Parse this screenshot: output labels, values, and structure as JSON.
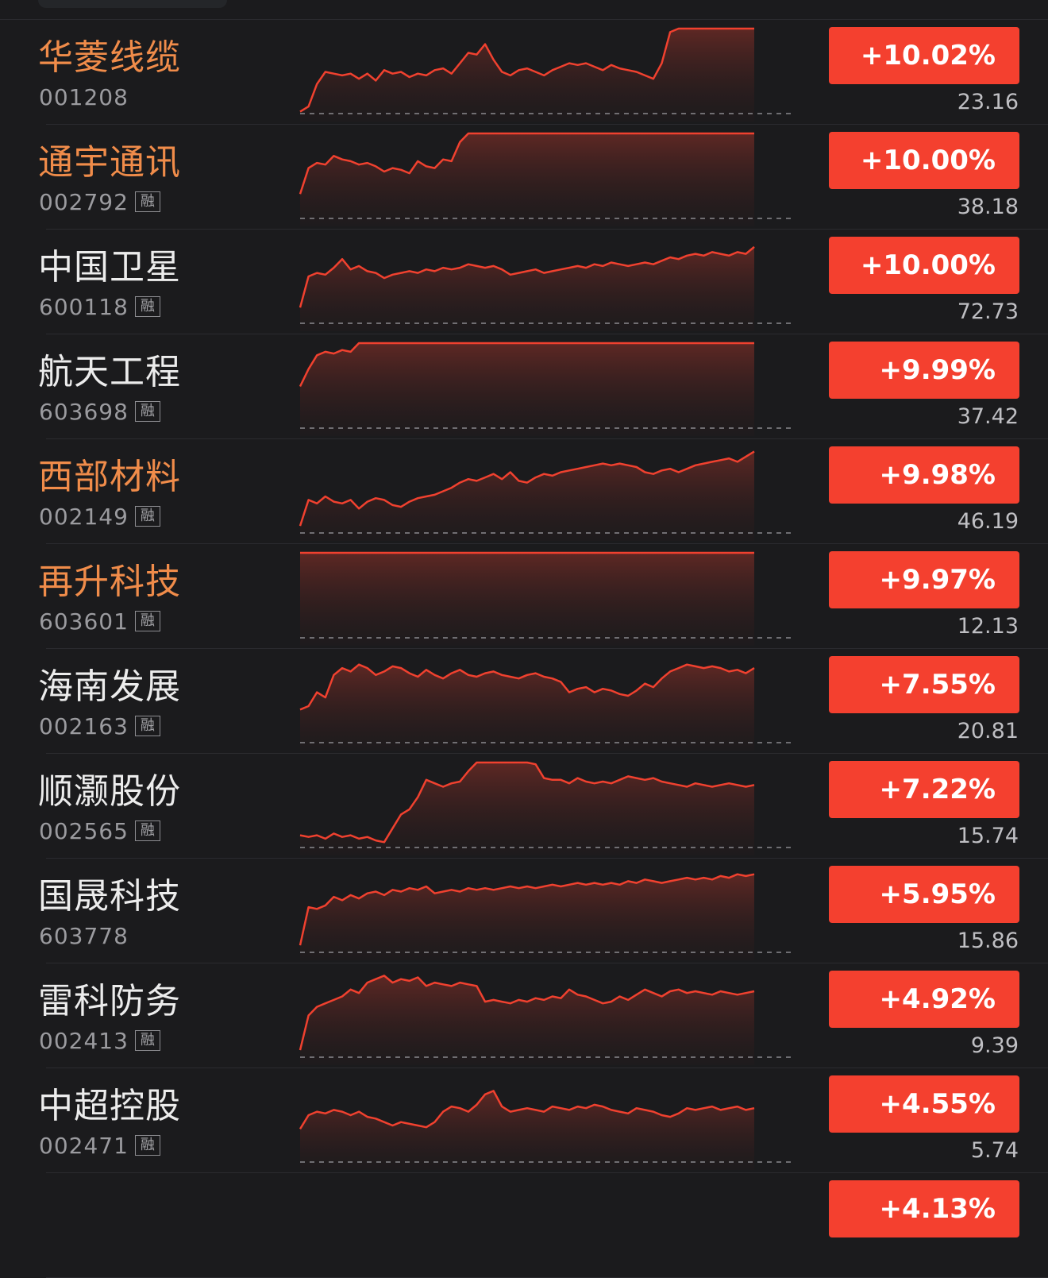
{
  "stocks": [
    {
      "name": "华菱线缆",
      "code": "001208",
      "margin_badge": "",
      "change": "+10.02%",
      "price": "23.16",
      "highlight": true,
      "spark": [
        2,
        5,
        18,
        25,
        24,
        23,
        24,
        21,
        24,
        20,
        26,
        24,
        25,
        22,
        24,
        23,
        26,
        27,
        24,
        30,
        36,
        35,
        41,
        32,
        25,
        23,
        26,
        27,
        25,
        23,
        26,
        28,
        30,
        29,
        30,
        28,
        26,
        29,
        27,
        26,
        25,
        23,
        21,
        30,
        48,
        50,
        50,
        50,
        50,
        50,
        50,
        50,
        50,
        50,
        50
      ]
    },
    {
      "name": "通宇通讯",
      "code": "002792",
      "margin_badge": "融",
      "change": "+10.00%",
      "price": "38.18",
      "highlight": true,
      "spark": [
        15,
        30,
        33,
        32,
        37,
        35,
        34,
        32,
        33,
        31,
        28,
        30,
        29,
        27,
        34,
        31,
        30,
        35,
        34,
        45,
        50,
        50,
        50,
        50,
        50,
        50,
        50,
        50,
        50,
        50,
        50,
        50,
        50,
        50,
        50,
        50,
        50,
        50,
        50,
        50,
        50,
        50,
        50,
        50,
        50,
        50,
        50,
        50,
        50,
        50,
        50,
        50,
        50,
        50,
        50
      ]
    },
    {
      "name": "中国卫星",
      "code": "600118",
      "margin_badge": "融",
      "change": "+10.00%",
      "price": "72.73",
      "highlight": false,
      "spark": [
        10,
        28,
        30,
        29,
        33,
        38,
        32,
        34,
        31,
        30,
        27,
        29,
        30,
        31,
        30,
        32,
        31,
        33,
        32,
        33,
        35,
        34,
        33,
        34,
        32,
        29,
        30,
        31,
        32,
        30,
        31,
        32,
        33,
        34,
        33,
        35,
        34,
        36,
        35,
        34,
        35,
        36,
        35,
        37,
        39,
        38,
        40,
        41,
        40,
        42,
        41,
        40,
        42,
        41,
        45
      ]
    },
    {
      "name": "航天工程",
      "code": "603698",
      "margin_badge": "融",
      "change": "+9.99%",
      "price": "37.42",
      "highlight": false,
      "spark": [
        25,
        35,
        43,
        45,
        44,
        46,
        45,
        50,
        50,
        50,
        50,
        50,
        50,
        50,
        50,
        50,
        50,
        50,
        50,
        50,
        50,
        50,
        50,
        50,
        50,
        50,
        50,
        50,
        50,
        50,
        50,
        50,
        50,
        50,
        50,
        50,
        50,
        50,
        50,
        50,
        50,
        50,
        50,
        50,
        50,
        50,
        50,
        50,
        50,
        50,
        50,
        50,
        50,
        50,
        50
      ]
    },
    {
      "name": "西部材料",
      "code": "002149",
      "margin_badge": "融",
      "change": "+9.98%",
      "price": "46.19",
      "highlight": true,
      "spark": [
        5,
        20,
        18,
        22,
        19,
        18,
        20,
        15,
        19,
        21,
        20,
        17,
        16,
        19,
        21,
        22,
        23,
        25,
        27,
        30,
        32,
        31,
        33,
        35,
        32,
        36,
        31,
        30,
        33,
        35,
        34,
        36,
        37,
        38,
        39,
        40,
        41,
        40,
        41,
        40,
        39,
        36,
        35,
        37,
        38,
        36,
        38,
        40,
        41,
        42,
        43,
        44,
        42,
        45,
        48
      ]
    },
    {
      "name": "再升科技",
      "code": "603601",
      "margin_badge": "融",
      "change": "+9.97%",
      "price": "12.13",
      "highlight": true,
      "spark": [
        50,
        50,
        50,
        50,
        50,
        50,
        50,
        50,
        50,
        50,
        50,
        50,
        50,
        50,
        50,
        50,
        50,
        50,
        50,
        50,
        50,
        50,
        50,
        50,
        50,
        50,
        50,
        50,
        50,
        50,
        50,
        50,
        50,
        50,
        50,
        50,
        50,
        50,
        50,
        50,
        50,
        50,
        50,
        50,
        50,
        50,
        50,
        50,
        50,
        50,
        50,
        50,
        50,
        50,
        50
      ]
    },
    {
      "name": "海南发展",
      "code": "002163",
      "margin_badge": "融",
      "change": "+7.55%",
      "price": "20.81",
      "highlight": false,
      "spark": [
        20,
        22,
        30,
        27,
        40,
        44,
        42,
        46,
        44,
        40,
        42,
        45,
        44,
        41,
        39,
        43,
        40,
        38,
        41,
        43,
        40,
        39,
        41,
        42,
        40,
        39,
        38,
        40,
        41,
        39,
        38,
        36,
        30,
        32,
        33,
        30,
        32,
        31,
        29,
        28,
        31,
        35,
        33,
        38,
        42,
        44,
        46,
        45,
        44,
        45,
        44,
        42,
        43,
        41,
        44
      ]
    },
    {
      "name": "顺灏股份",
      "code": "002565",
      "margin_badge": "融",
      "change": "+7.22%",
      "price": "15.74",
      "highlight": false,
      "spark": [
        8,
        7,
        8,
        6,
        9,
        7,
        8,
        6,
        7,
        5,
        4,
        12,
        20,
        23,
        30,
        40,
        38,
        36,
        38,
        39,
        45,
        50,
        50,
        50,
        50,
        50,
        50,
        50,
        49,
        41,
        40,
        40,
        38,
        41,
        39,
        38,
        39,
        38,
        40,
        42,
        41,
        40,
        41,
        39,
        38,
        37,
        36,
        38,
        37,
        36,
        37,
        38,
        37,
        36,
        37
      ]
    },
    {
      "name": "国晟科技",
      "code": "603778",
      "margin_badge": "",
      "change": "+5.95%",
      "price": "15.86",
      "highlight": false,
      "spark": [
        5,
        27,
        26,
        28,
        33,
        31,
        34,
        32,
        35,
        36,
        34,
        37,
        36,
        38,
        37,
        39,
        35,
        36,
        37,
        36,
        38,
        37,
        38,
        37,
        38,
        39,
        38,
        39,
        38,
        39,
        40,
        39,
        40,
        41,
        40,
        41,
        40,
        41,
        40,
        42,
        41,
        43,
        42,
        41,
        42,
        43,
        44,
        43,
        44,
        43,
        45,
        44,
        46,
        45,
        46
      ]
    },
    {
      "name": "雷科防务",
      "code": "002413",
      "margin_badge": "融",
      "change": "+4.92%",
      "price": "9.39",
      "highlight": false,
      "spark": [
        5,
        25,
        30,
        32,
        34,
        36,
        40,
        38,
        44,
        46,
        48,
        44,
        46,
        45,
        47,
        42,
        44,
        43,
        42,
        44,
        43,
        42,
        33,
        34,
        33,
        32,
        34,
        33,
        35,
        34,
        36,
        35,
        40,
        37,
        36,
        34,
        32,
        33,
        36,
        34,
        37,
        40,
        38,
        36,
        39,
        40,
        38,
        39,
        38,
        37,
        39,
        38,
        37,
        38,
        39
      ]
    },
    {
      "name": "中超控股",
      "code": "002471",
      "margin_badge": "融",
      "change": "+4.55%",
      "price": "5.74",
      "highlight": false,
      "spark": [
        20,
        28,
        30,
        29,
        31,
        30,
        28,
        30,
        27,
        26,
        24,
        22,
        24,
        23,
        22,
        21,
        24,
        30,
        33,
        32,
        30,
        34,
        40,
        42,
        33,
        30,
        31,
        32,
        31,
        30,
        33,
        32,
        31,
        33,
        32,
        34,
        33,
        31,
        30,
        29,
        32,
        31,
        30,
        28,
        27,
        29,
        32,
        31,
        32,
        33,
        31,
        32,
        33,
        31,
        32
      ]
    }
  ],
  "partial_row": {
    "change": "+4.13%"
  }
}
